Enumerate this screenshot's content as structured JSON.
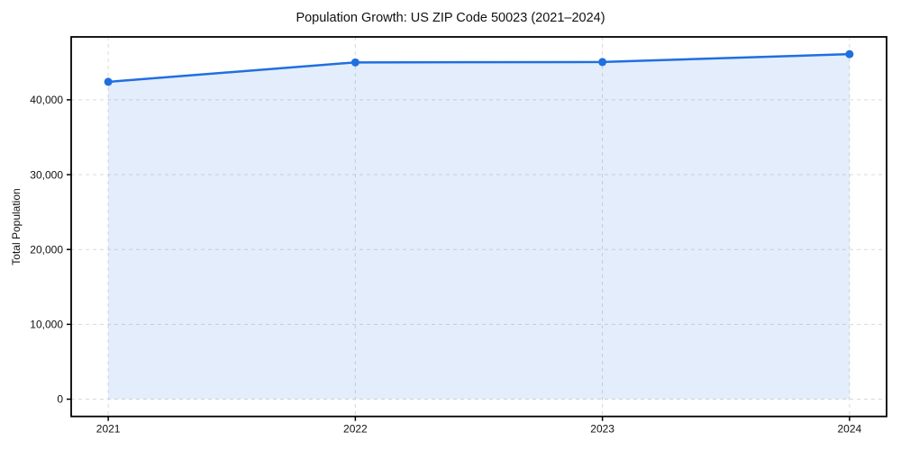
{
  "chart_data": {
    "type": "line",
    "title": "Population Growth: US ZIP Code 50023 (2021–2024)",
    "xlabel": "",
    "ylabel": "Total Population",
    "x": [
      2021,
      2022,
      2023,
      2024
    ],
    "series": [
      {
        "name": "Total Population",
        "values": [
          42400,
          45000,
          45050,
          46100
        ]
      }
    ],
    "xticks": [
      2021,
      2022,
      2023,
      2024
    ],
    "xtick_labels": [
      "2021",
      "2022",
      "2023",
      "2024"
    ],
    "yticks": [
      0,
      10000,
      20000,
      30000,
      40000
    ],
    "ytick_labels": [
      "0",
      "10,000",
      "20,000",
      "30,000",
      "40,000"
    ],
    "xlim": [
      2020.85,
      2024.15
    ],
    "ylim": [
      -2305,
      48405
    ],
    "grid": true,
    "grid_style": "dashed",
    "legend": "none",
    "area_fill_to": 0,
    "colors": {
      "line": "#1f6fe0",
      "marker": "#1f6fe0",
      "fill": "#1f6fe0",
      "fill_alpha": 0.12,
      "grid": "#d9d9d9",
      "axis": "#000000",
      "background": "#ffffff"
    }
  }
}
